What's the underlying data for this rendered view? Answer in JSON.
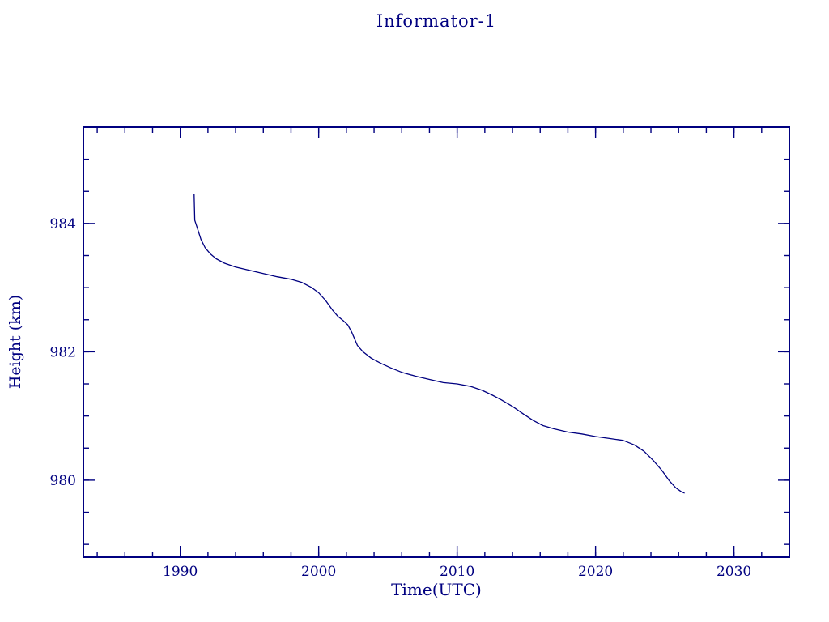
{
  "chart_data": {
    "type": "line",
    "title": "Informator-1",
    "xlabel": "Time(UTC)",
    "ylabel": "Height (km)",
    "xlim": [
      1983,
      2034
    ],
    "ylim": [
      978.8,
      985.5
    ],
    "x_ticks": [
      1990,
      2000,
      2010,
      2020,
      2030
    ],
    "y_ticks": [
      980,
      982,
      984
    ],
    "x_minor_step": 2,
    "y_minor_step": 0.5,
    "grid": false,
    "legend": "none",
    "line_color": "#000080",
    "frame_color": "#000080",
    "background_color": "#ffffff",
    "series": [
      {
        "name": "height",
        "points": [
          [
            1991.0,
            984.45
          ],
          [
            1991.02,
            984.3
          ],
          [
            1991.05,
            984.05
          ],
          [
            1991.2,
            983.95
          ],
          [
            1991.5,
            983.75
          ],
          [
            1991.8,
            983.62
          ],
          [
            1992.2,
            983.52
          ],
          [
            1992.6,
            983.45
          ],
          [
            1993.2,
            983.38
          ],
          [
            1994.0,
            983.32
          ],
          [
            1995.0,
            983.27
          ],
          [
            1996.0,
            983.22
          ],
          [
            1997.0,
            983.17
          ],
          [
            1998.0,
            983.13
          ],
          [
            1998.8,
            983.08
          ],
          [
            1999.5,
            983.0
          ],
          [
            2000.0,
            982.92
          ],
          [
            2000.5,
            982.8
          ],
          [
            2001.0,
            982.65
          ],
          [
            2001.4,
            982.55
          ],
          [
            2001.8,
            982.48
          ],
          [
            2002.1,
            982.42
          ],
          [
            2002.4,
            982.3
          ],
          [
            2002.8,
            982.1
          ],
          [
            2003.2,
            982.0
          ],
          [
            2003.8,
            981.9
          ],
          [
            2004.5,
            981.82
          ],
          [
            2005.2,
            981.75
          ],
          [
            2006.0,
            981.68
          ],
          [
            2007.0,
            981.62
          ],
          [
            2008.0,
            981.57
          ],
          [
            2009.0,
            981.52
          ],
          [
            2010.0,
            981.5
          ],
          [
            2011.0,
            981.46
          ],
          [
            2011.8,
            981.4
          ],
          [
            2012.5,
            981.33
          ],
          [
            2013.2,
            981.25
          ],
          [
            2014.0,
            981.15
          ],
          [
            2014.8,
            981.03
          ],
          [
            2015.5,
            980.93
          ],
          [
            2016.2,
            980.85
          ],
          [
            2017.0,
            980.8
          ],
          [
            2018.0,
            980.75
          ],
          [
            2019.0,
            980.72
          ],
          [
            2020.0,
            980.68
          ],
          [
            2021.0,
            980.65
          ],
          [
            2022.0,
            980.62
          ],
          [
            2022.8,
            980.55
          ],
          [
            2023.5,
            980.45
          ],
          [
            2024.2,
            980.3
          ],
          [
            2024.8,
            980.15
          ],
          [
            2025.3,
            980.0
          ],
          [
            2025.8,
            979.88
          ],
          [
            2026.2,
            979.82
          ],
          [
            2026.4,
            979.8
          ]
        ]
      }
    ]
  }
}
